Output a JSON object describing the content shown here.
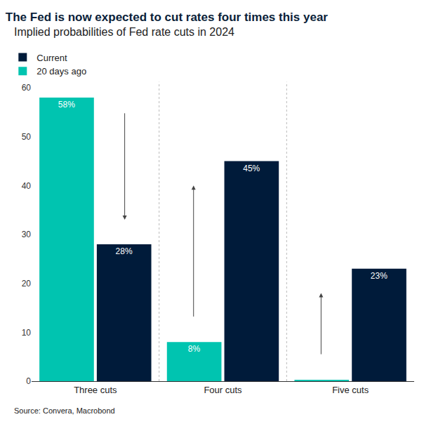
{
  "chart_data": {
    "type": "bar",
    "title": "The Fed is now expected to cut rates four times this year",
    "subtitle": "Implied probabilities of Fed rate cuts in 2024",
    "source": "Source: Convera, Macrobond",
    "categories": [
      "Three cuts",
      "Four cuts",
      "Five cuts"
    ],
    "series": [
      {
        "name": "20 days ago",
        "color": "#00c4b0",
        "values": [
          58,
          8,
          0.3
        ],
        "value_labels": [
          "58%",
          "8%",
          null
        ]
      },
      {
        "name": "Current",
        "color": "#001b3a",
        "values": [
          28,
          45,
          23
        ],
        "value_labels": [
          "28%",
          "45%",
          "23%"
        ]
      }
    ],
    "ylim": [
      0,
      60
    ],
    "yticks": [
      0,
      10,
      20,
      30,
      40,
      50,
      60
    ],
    "grid": false,
    "legend": "top-left",
    "data_labels": true
  }
}
